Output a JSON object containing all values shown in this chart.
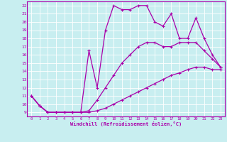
{
  "xlabel": "Windchill (Refroidissement éolien,°C)",
  "bg_color": "#c8eef0",
  "grid_color": "#ffffff",
  "line_color": "#aa00aa",
  "xlim": [
    -0.5,
    23.5
  ],
  "ylim": [
    8.5,
    22.5
  ],
  "xticks": [
    0,
    1,
    2,
    3,
    4,
    5,
    6,
    7,
    8,
    9,
    10,
    11,
    12,
    13,
    14,
    15,
    16,
    17,
    18,
    19,
    20,
    21,
    22,
    23
  ],
  "yticks": [
    9,
    10,
    11,
    12,
    13,
    14,
    15,
    16,
    17,
    18,
    19,
    20,
    21,
    22
  ],
  "line1_x": [
    0,
    1,
    2,
    3,
    4,
    5,
    6,
    7,
    8,
    9,
    10,
    11,
    12,
    13,
    14,
    15,
    16,
    17,
    18,
    19,
    20,
    21,
    22,
    23
  ],
  "line1_y": [
    11.0,
    9.8,
    9.0,
    9.0,
    9.0,
    9.0,
    9.0,
    9.0,
    9.2,
    9.5,
    10.0,
    10.5,
    11.0,
    11.5,
    12.0,
    12.5,
    13.0,
    13.5,
    13.8,
    14.2,
    14.5,
    14.5,
    14.2,
    14.2
  ],
  "line2_x": [
    0,
    1,
    2,
    3,
    4,
    5,
    6,
    7,
    8,
    9,
    10,
    11,
    12,
    13,
    14,
    15,
    16,
    17,
    18,
    19,
    20,
    21,
    22,
    23
  ],
  "line2_y": [
    11.0,
    9.8,
    9.0,
    9.0,
    9.0,
    9.0,
    9.0,
    9.2,
    10.5,
    12.0,
    13.5,
    15.0,
    16.0,
    17.0,
    17.5,
    17.5,
    17.0,
    17.0,
    17.5,
    17.5,
    17.5,
    16.5,
    15.5,
    14.5
  ],
  "line3_x": [
    0,
    1,
    2,
    3,
    4,
    5,
    6,
    7,
    8,
    9,
    10,
    11,
    12,
    13,
    14,
    15,
    16,
    17,
    18,
    19,
    20,
    21,
    22,
    23
  ],
  "line3_y": [
    11.0,
    9.8,
    9.0,
    9.0,
    9.0,
    9.0,
    9.0,
    16.5,
    12.0,
    19.0,
    22.0,
    21.5,
    21.5,
    22.0,
    22.0,
    20.0,
    19.5,
    21.0,
    18.0,
    18.0,
    20.5,
    18.0,
    16.0,
    14.5
  ]
}
